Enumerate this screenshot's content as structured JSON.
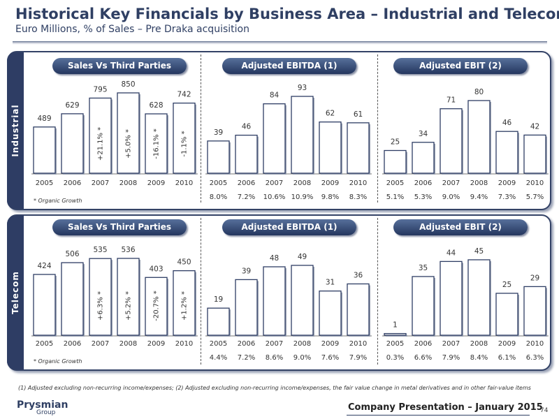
{
  "title": "Historical Key Financials by Business Area – Industrial and Telecom",
  "subtitle": "Euro Millions, % of Sales – Pre Draka acquisition",
  "footnote": "(1)   Adjusted excluding non-recurring income/expenses;  (2)   Adjusted excluding non-recurring income/expenses, the fair value change in metal derivatives and in other fair-value items",
  "footer": {
    "company_presentation": "Company Presentation – January 2015",
    "page_number": "74",
    "logo_text": "Prysmian",
    "logo_sub": "Group"
  },
  "panels": [
    {
      "side_label": "Industrial",
      "organic_note": "* Organic Growth"
    },
    {
      "side_label": "Telecom",
      "organic_note": "* Organic Growth"
    }
  ],
  "chart_data": [
    {
      "type": "bar",
      "title": "Sales Vs Third Parties",
      "categories": [
        "2005",
        "2006",
        "2007",
        "2008",
        "2009",
        "2010"
      ],
      "values": [
        489,
        629,
        795,
        850,
        628,
        742
      ],
      "inner_labels": [
        "",
        "",
        "+21.1% *",
        "+5.0% *",
        "-16.1% *",
        "-1.1% *"
      ],
      "percent_labels": []
    },
    {
      "type": "bar",
      "title": "Adjusted EBITDA (1)",
      "categories": [
        "2005",
        "2006",
        "2007",
        "2008",
        "2009",
        "2010"
      ],
      "values": [
        39,
        46,
        84,
        93,
        62,
        61
      ],
      "percent_labels": [
        "8.0%",
        "7.2%",
        "10.6%",
        "10.9%",
        "9.8%",
        "8.3%"
      ]
    },
    {
      "type": "bar",
      "title": "Adjusted EBIT (2)",
      "categories": [
        "2005",
        "2006",
        "2007",
        "2008",
        "2009",
        "2010"
      ],
      "values": [
        25,
        34,
        71,
        80,
        46,
        42
      ],
      "percent_labels": [
        "5.1%",
        "5.3%",
        "9.0%",
        "9.4%",
        "7.3%",
        "5.7%"
      ]
    },
    {
      "type": "bar",
      "title": "Sales Vs Third Parties",
      "categories": [
        "2005",
        "2006",
        "2007",
        "2008",
        "2009",
        "2010"
      ],
      "values": [
        424,
        506,
        535,
        536,
        403,
        450
      ],
      "inner_labels": [
        "",
        "",
        "+6.3% *",
        "+5.2% *",
        "-20.7% *",
        "+1.2% *"
      ],
      "percent_labels": []
    },
    {
      "type": "bar",
      "title": "Adjusted EBITDA (1)",
      "categories": [
        "2005",
        "2006",
        "2007",
        "2008",
        "2009",
        "2010"
      ],
      "values": [
        19,
        39,
        48,
        49,
        31,
        36
      ],
      "percent_labels": [
        "4.4%",
        "7.2%",
        "8.6%",
        "9.0%",
        "7.6%",
        "7.9%"
      ]
    },
    {
      "type": "bar",
      "title": "Adjusted EBIT (2)",
      "categories": [
        "2005",
        "2006",
        "2007",
        "2008",
        "2009",
        "2010"
      ],
      "values": [
        1,
        35,
        44,
        45,
        25,
        29
      ],
      "percent_labels": [
        "0.3%",
        "6.6%",
        "7.9%",
        "8.4%",
        "6.1%",
        "6.3%"
      ]
    }
  ]
}
